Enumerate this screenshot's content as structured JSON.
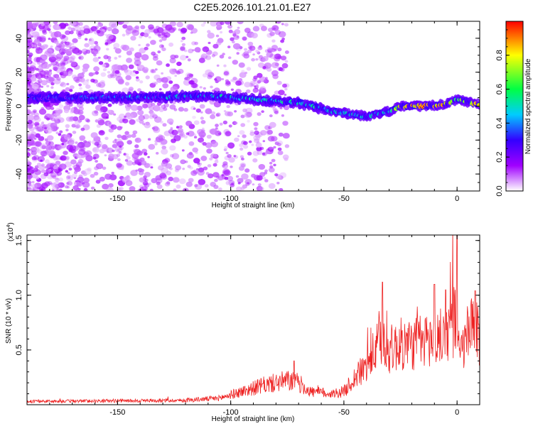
{
  "title": "C2E5.2026.101.21.01.E27",
  "chart_data": [
    {
      "type": "heatmap",
      "xlabel": "Height of straight line (km)",
      "ylabel": "Frequency (Hz)",
      "xlim": [
        -190,
        10
      ],
      "ylim": [
        -50,
        50
      ],
      "xticks": [
        -150,
        -100,
        -50,
        0
      ],
      "yticks": [
        -40,
        -20,
        0,
        20,
        40
      ],
      "colorbar": {
        "label": "Normalized spectral amplitude",
        "range": [
          0,
          1
        ],
        "ticks": [
          0.0,
          0.2,
          0.4,
          0.6,
          0.8
        ],
        "colors": [
          "#ffffff",
          "#a000ff",
          "#3300ff",
          "#00ccff",
          "#00ff44",
          "#ffff00",
          "#ff0000"
        ]
      },
      "ridge": {
        "x": [
          -190,
          -150,
          -110,
          -90,
          -70,
          -55,
          -40,
          -30,
          -25,
          -15,
          -5,
          0,
          10
        ],
        "frequency": [
          5,
          5,
          6,
          4,
          2,
          -3,
          -6,
          -3,
          0,
          0,
          1,
          4,
          1
        ],
        "amplitude": [
          0.35,
          0.4,
          0.45,
          0.5,
          0.55,
          0.5,
          0.45,
          0.55,
          0.9,
          0.95,
          0.9,
          0.7,
          0.9
        ]
      }
    },
    {
      "type": "line",
      "xlabel": "Height of straight line (km)",
      "ylabel": "SNR (10 * v/v)",
      "y_scale_label": "(x10",
      "y_scale_exp": "4",
      "y_scale_close": ")",
      "xlim": [
        -190,
        10
      ],
      "ylim": [
        0,
        1.55
      ],
      "xticks": [
        -150,
        -100,
        -50,
        0
      ],
      "yticks": [
        0.5,
        1.0,
        1.5
      ],
      "yticklabels": [
        "0.5",
        "1.0",
        "1.5"
      ],
      "color": "#ee2222",
      "envelope": {
        "x": [
          -190,
          -120,
          -105,
          -95,
          -85,
          -75,
          -70,
          -65,
          -55,
          -50,
          -45,
          -40,
          -36,
          -33,
          -30,
          -25,
          -20,
          -15,
          -10,
          -5,
          -2,
          0,
          1,
          3,
          5,
          8,
          10
        ],
        "y": [
          0.03,
          0.04,
          0.06,
          0.12,
          0.18,
          0.22,
          0.2,
          0.12,
          0.1,
          0.12,
          0.25,
          0.35,
          0.5,
          0.6,
          0.5,
          0.55,
          0.55,
          0.58,
          0.6,
          0.62,
          0.75,
          0.8,
          0.4,
          0.55,
          0.65,
          0.7,
          0.55
        ]
      },
      "peaks": [
        {
          "x": -33,
          "y": 1.12
        },
        {
          "x": -10,
          "y": 1.1
        },
        {
          "x": -5,
          "y": 1.05
        },
        {
          "x": 0,
          "y": 1.55
        },
        {
          "x": 8,
          "y": 1.04
        },
        {
          "x": -72,
          "y": 0.4
        }
      ]
    }
  ]
}
